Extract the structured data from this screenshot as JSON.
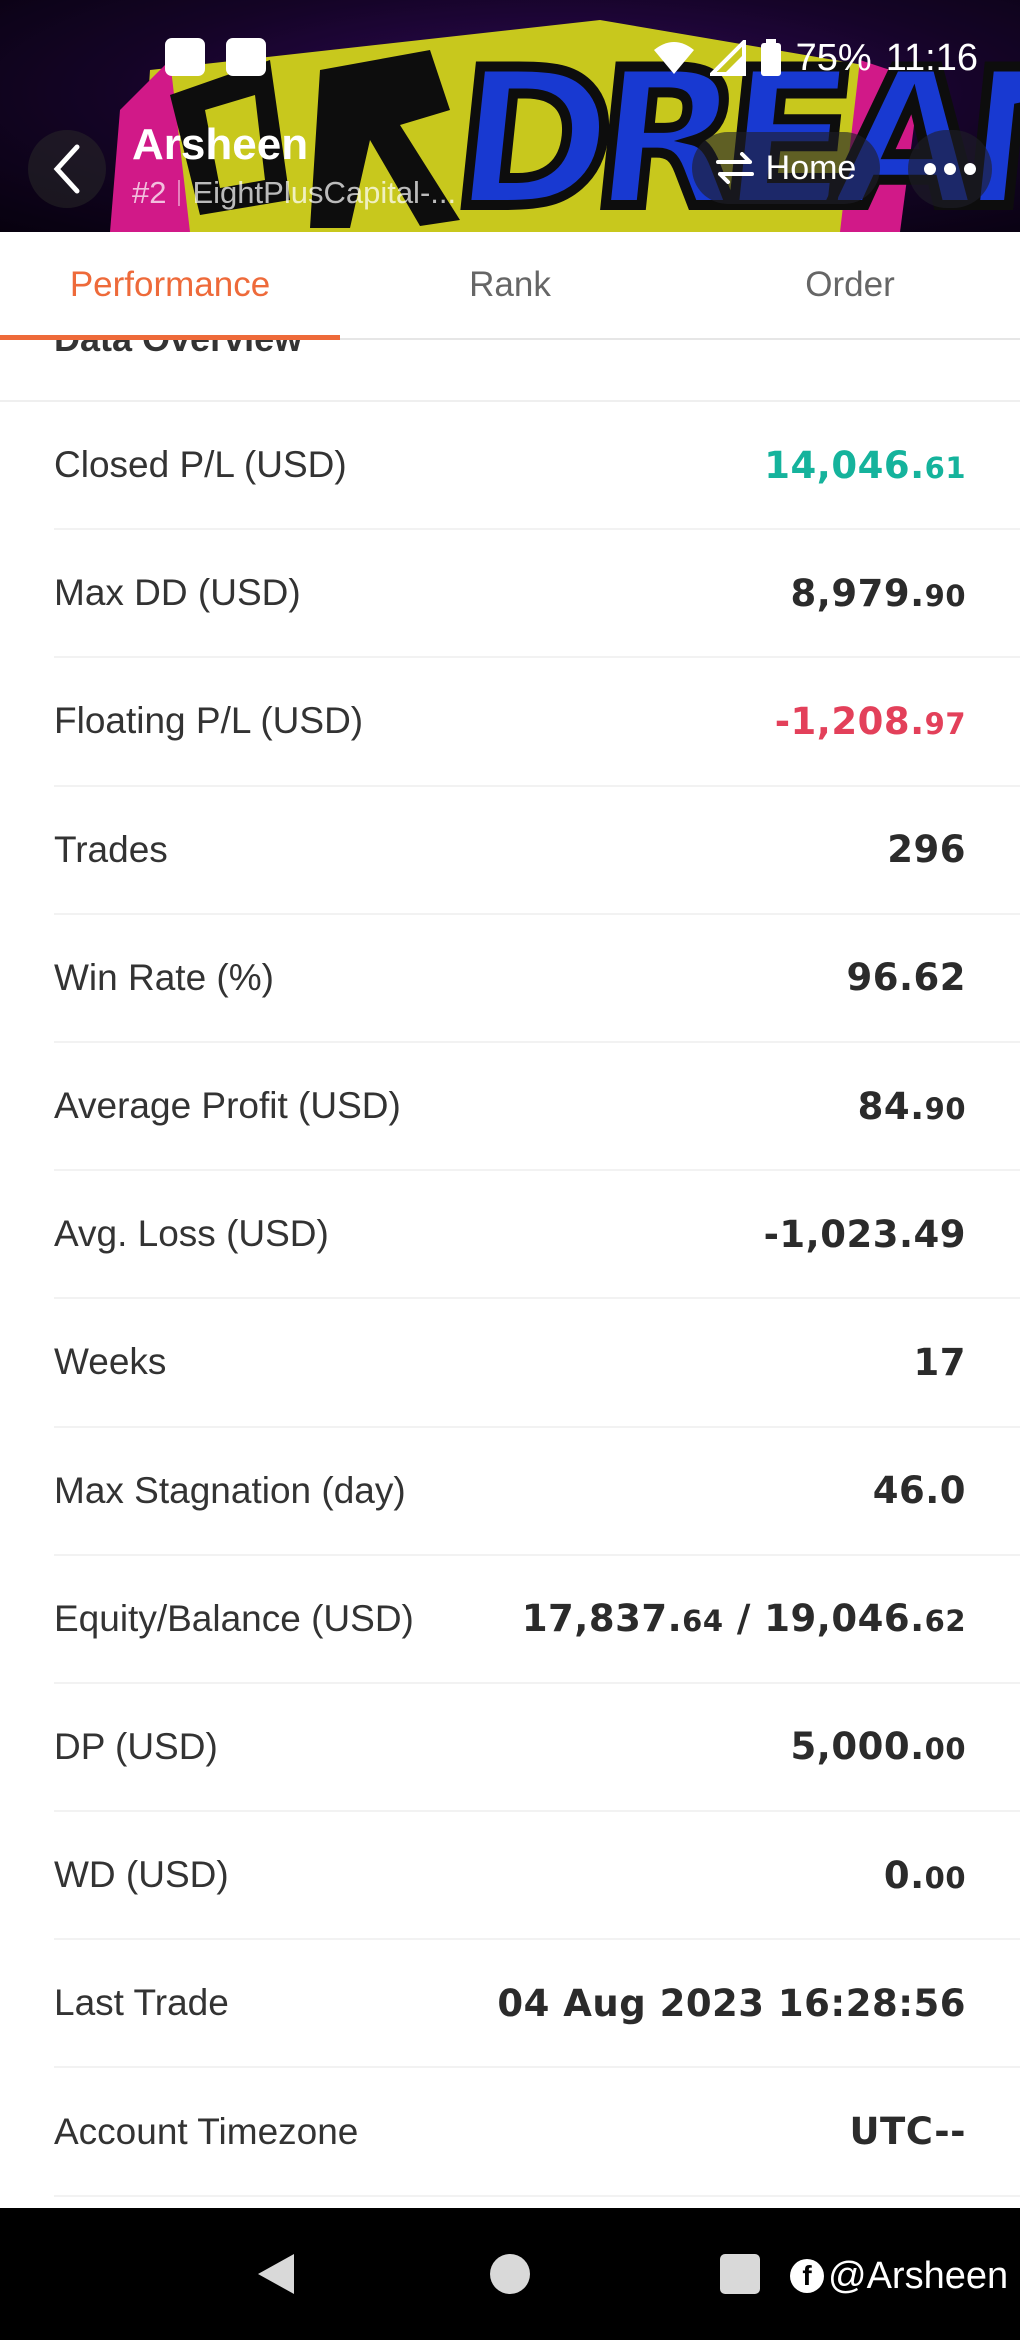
{
  "status_bar": {
    "battery": "75%",
    "time": "11:16"
  },
  "header": {
    "title": "Arsheen",
    "rank": "#2",
    "account": "EightPlusCapital-...",
    "banner_text": "DREAM",
    "home_label": "Home"
  },
  "tabs": [
    {
      "label": "Performance",
      "active": true
    },
    {
      "label": "Rank",
      "active": false
    },
    {
      "label": "Order",
      "active": false
    }
  ],
  "section": {
    "title": "Data Overview"
  },
  "rows": [
    {
      "label": "Closed P/L (USD)",
      "value_main": "14,046.",
      "value_small": "61",
      "tone": "pos"
    },
    {
      "label": "Max DD (USD)",
      "value_main": "8,979.",
      "value_small": "90",
      "tone": ""
    },
    {
      "label": "Floating P/L (USD)",
      "value_main": "-1,208.",
      "value_small": "97",
      "tone": "neg"
    },
    {
      "label": "Trades",
      "value_main": "296",
      "value_small": "",
      "tone": ""
    },
    {
      "label": "Win Rate (%)",
      "value_main": "96.62",
      "value_small": "",
      "tone": ""
    },
    {
      "label": "Average Profit (USD)",
      "value_main": "84.",
      "value_small": "90",
      "tone": ""
    },
    {
      "label": "Avg. Loss (USD)",
      "value_main": "-1,023.49",
      "value_small": "",
      "tone": ""
    },
    {
      "label": "Weeks",
      "value_main": "17",
      "value_small": "",
      "tone": ""
    },
    {
      "label": "Max Stagnation (day)",
      "value_main": "46.0",
      "value_small": "",
      "tone": ""
    },
    {
      "label": "Equity/Balance (USD)",
      "value_main": "17,837.",
      "value_small": "64",
      "value_main2": " / 19,046.",
      "value_small2": "62",
      "tone": ""
    },
    {
      "label": "DP (USD)",
      "value_main": "5,000.",
      "value_small": "00",
      "tone": ""
    },
    {
      "label": "WD (USD)",
      "value_main": "0.",
      "value_small": "00",
      "tone": ""
    },
    {
      "label": "Last Trade",
      "value_main": "04 Aug 2023 16:28:56",
      "value_small": "",
      "tone": ""
    },
    {
      "label": "Account Timezone",
      "value_main": "UTC--",
      "value_small": "",
      "tone": ""
    }
  ],
  "watermark": {
    "handle": "@Arsheen",
    "icon": "facebook-icon"
  },
  "colors": {
    "accent": "#ee6a3a",
    "positive": "#15b39c",
    "negative": "#e3405a"
  }
}
